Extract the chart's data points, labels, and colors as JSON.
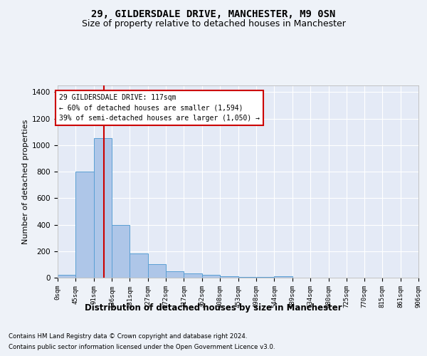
{
  "title1": "29, GILDERSDALE DRIVE, MANCHESTER, M9 0SN",
  "title2": "Size of property relative to detached houses in Manchester",
  "xlabel": "Distribution of detached houses by size in Manchester",
  "ylabel": "Number of detached properties",
  "footnote1": "Contains HM Land Registry data © Crown copyright and database right 2024.",
  "footnote2": "Contains public sector information licensed under the Open Government Licence v3.0.",
  "annotation_line1": "29 GILDERSDALE DRIVE: 117sqm",
  "annotation_line2": "← 60% of detached houses are smaller (1,594)",
  "annotation_line3": "39% of semi-detached houses are larger (1,050) →",
  "bin_edges": [
    0,
    45,
    91,
    136,
    181,
    227,
    272,
    317,
    362,
    408,
    453,
    498,
    544,
    589,
    634,
    680,
    725,
    770,
    815,
    861,
    906
  ],
  "bar_heights": [
    20,
    800,
    1050,
    400,
    180,
    100,
    48,
    30,
    20,
    12,
    5,
    3,
    10,
    0,
    0,
    0,
    0,
    0,
    0,
    0
  ],
  "bar_color": "#aec6e8",
  "bar_edge_color": "#5a9fd4",
  "bar_alpha": 1.0,
  "vline_x": 117,
  "vline_color": "#cc0000",
  "ylim": [
    0,
    1450
  ],
  "yticks": [
    0,
    200,
    400,
    600,
    800,
    1000,
    1200,
    1400
  ],
  "bg_color": "#eef2f8",
  "plot_bg_color": "#e4eaf6",
  "grid_color": "#ffffff",
  "annotation_box_color": "#cc0000",
  "title1_fontsize": 10,
  "title2_fontsize": 9,
  "xlabel_fontsize": 8.5,
  "ylabel_fontsize": 8
}
